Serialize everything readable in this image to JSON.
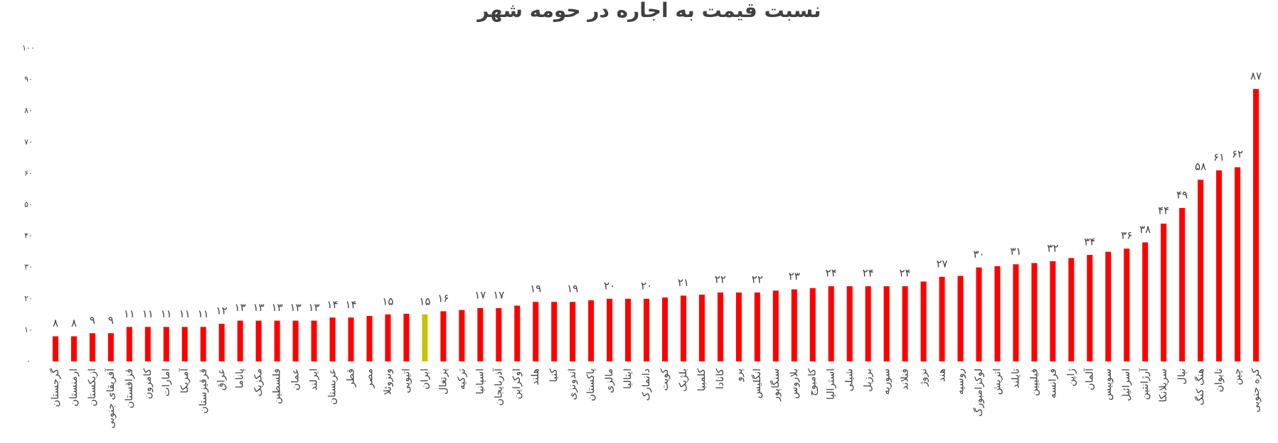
{
  "chart_data": {
    "type": "bar",
    "title": "نسبت قیمت به اجاره در حومه شهر",
    "categories": [
      "گرجستان",
      "ارمنستان",
      "ازبکستان",
      "آفریقای جنوبی",
      "قزاقستان",
      "کامرون",
      "امارات",
      "آمریکا",
      "قرقیزستان",
      "عراق",
      "پاناما",
      "مکزیک",
      "فلسطین",
      "عمان",
      "ایرلند",
      "عربستان",
      "قطر",
      "مصر",
      "ونزوئلا",
      "اتیوپی",
      "ایران",
      "پرتغال",
      "ترکیه",
      "اسپانیا",
      "آذربایجان",
      "اوکراین",
      "هلند",
      "کنیا",
      "اندونزی",
      "پاکستان",
      "مالزی",
      "ایتالیا",
      "دانمارک",
      "کویت",
      "بلژیک",
      "کلمبیا",
      "کانادا",
      "پرو",
      "انگلیس",
      "سنگاپور",
      "بلاروس",
      "کامبوج",
      "استرالیا",
      "شیلی",
      "برزیل",
      "سوریه",
      "فنلاند",
      "نروژ",
      "هند",
      "روسیه",
      "لوکزامبورگ",
      "اتریش",
      "تایلند",
      "فیلیپین",
      "فرانسه",
      "ژاپن",
      "آلمان",
      "سوییس",
      "اسرائیل",
      "آرژانتین",
      "سریلانکا",
      "نپال",
      "هنگ کنگ",
      "تایوان",
      "چین",
      "کره جنوبی"
    ],
    "values": [
      8,
      8,
      9,
      9,
      11,
      11,
      11,
      11,
      11,
      12,
      13,
      13,
      13,
      13,
      13,
      14,
      14,
      14.5,
      15,
      15.2,
      15,
      16,
      16.4,
      17,
      17,
      17.8,
      19,
      19,
      19,
      19.5,
      20,
      20,
      20,
      20.4,
      21,
      21.3,
      22,
      22,
      22,
      22.6,
      23,
      23.4,
      24,
      24,
      24,
      24,
      24,
      25.5,
      27,
      27.3,
      30,
      30.4,
      31,
      31.4,
      32,
      33,
      34,
      35,
      36,
      38,
      44,
      49,
      58,
      61,
      62,
      87
    ],
    "value_labels": [
      "۸",
      "۸",
      "۹",
      "۹",
      "۱۱",
      "۱۱",
      "۱۱",
      "۱۱",
      "۱۱",
      "۱۲",
      "۱۳",
      "۱۳",
      "۱۳",
      "۱۳",
      "۱۳",
      "۱۴",
      "۱۴",
      null,
      "۱۵",
      null,
      "۱۵",
      "۱۶",
      null,
      "۱۷",
      "۱۷",
      null,
      "۱۹",
      null,
      "۱۹",
      null,
      "۲۰",
      null,
      "۲۰",
      null,
      "۲۱",
      null,
      "۲۲",
      null,
      "۲۲",
      null,
      "۲۳",
      null,
      "۲۴",
      null,
      "۲۴",
      null,
      "۲۴",
      null,
      "۲۷",
      null,
      "۳۰",
      null,
      "۳۱",
      null,
      "۳۲",
      null,
      "۳۴",
      null,
      "۳۶",
      "۳۸",
      "۴۴",
      "۴۹",
      "۵۸",
      "۶۱",
      "۶۲",
      "۸۷"
    ],
    "colors": [
      "#ff0000",
      "#ff0000",
      "#ff0000",
      "#ff0000",
      "#ff0000",
      "#ff0000",
      "#ff0000",
      "#ff0000",
      "#ff0000",
      "#ff0000",
      "#ff0000",
      "#ff0000",
      "#ff0000",
      "#ff0000",
      "#ff0000",
      "#ff0000",
      "#ff0000",
      "#ff0000",
      "#ff0000",
      "#ff0000",
      "#c5c400",
      "#ff0000",
      "#ff0000",
      "#ff0000",
      "#ff0000",
      "#ff0000",
      "#ff0000",
      "#ff0000",
      "#ff0000",
      "#ff0000",
      "#ff0000",
      "#ff0000",
      "#ff0000",
      "#ff0000",
      "#ff0000",
      "#ff0000",
      "#ff0000",
      "#ff0000",
      "#ff0000",
      "#ff0000",
      "#ff0000",
      "#ff0000",
      "#ff0000",
      "#ff0000",
      "#ff0000",
      "#ff0000",
      "#ff0000",
      "#ff0000",
      "#ff0000",
      "#ff0000",
      "#ff0000",
      "#ff0000",
      "#ff0000",
      "#ff0000",
      "#ff0000",
      "#ff0000",
      "#ff0000",
      "#ff0000",
      "#ff0000",
      "#ff0000",
      "#ff0000",
      "#ff0000",
      "#ff0000",
      "#ff0000",
      "#ff0000",
      "#ff0000"
    ],
    "ylim": [
      0,
      100
    ],
    "yticks": [
      {
        "value": 0,
        "label": "۰"
      },
      {
        "value": 10,
        "label": "۱۰"
      },
      {
        "value": 20,
        "label": "۲۰"
      },
      {
        "value": 30,
        "label": "۳۰"
      },
      {
        "value": 40,
        "label": "۴۰"
      },
      {
        "value": 50,
        "label": "۵۰"
      },
      {
        "value": 60,
        "label": "۶۰"
      },
      {
        "value": 70,
        "label": "۷۰"
      },
      {
        "value": 80,
        "label": "۸۰"
      },
      {
        "value": 90,
        "label": "۹۰"
      },
      {
        "value": 100,
        "label": "۱۰۰"
      }
    ],
    "grid": false
  }
}
